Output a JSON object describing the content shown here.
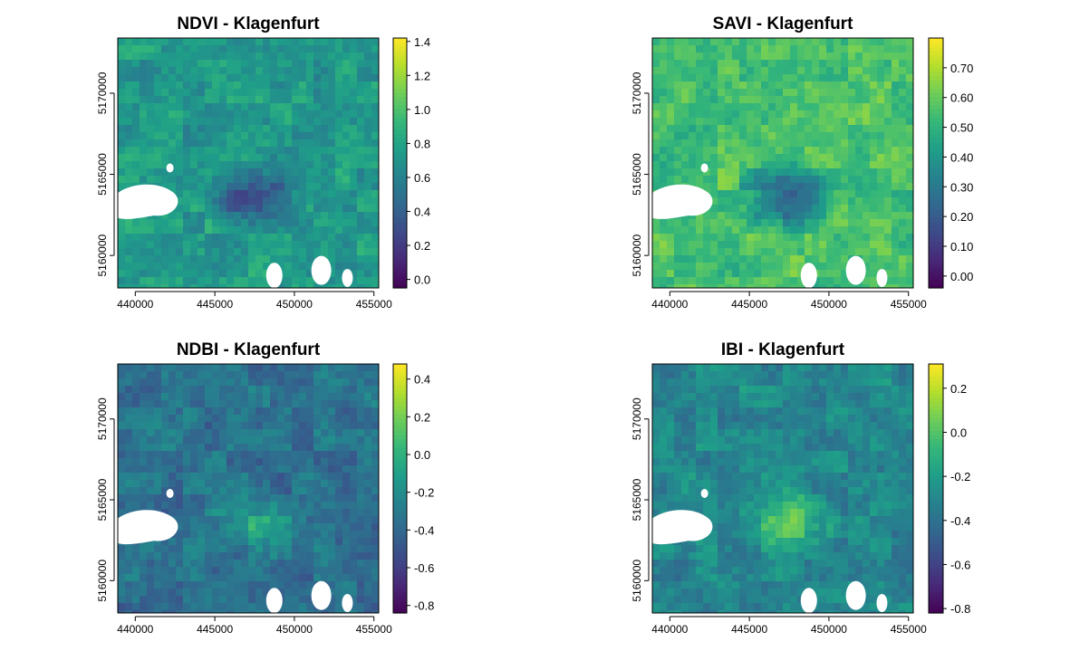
{
  "chart_data": [
    {
      "type": "heatmap",
      "title": "NDVI - Klagenfurt",
      "x_ticks": [
        440000,
        445000,
        450000,
        455000
      ],
      "y_ticks": [
        5160000,
        5165000,
        5170000
      ],
      "xlim": [
        438900,
        455300
      ],
      "ylim": [
        5158000,
        5173400
      ],
      "legend_ticks": [
        0.0,
        0.2,
        0.4,
        0.6,
        0.8,
        1.0,
        1.2,
        1.4
      ],
      "legend_tick_labels": [
        "0.0",
        "0.2",
        "0.4",
        "0.6",
        "0.8",
        "1.0",
        "1.2",
        "1.4"
      ],
      "legend_range": [
        -0.05,
        1.42
      ],
      "legend_placement": "right",
      "colormap": "viridis",
      "typical_value": 0.75,
      "urban_value": 0.25
    },
    {
      "type": "heatmap",
      "title": "SAVI - Klagenfurt",
      "x_ticks": [
        440000,
        445000,
        450000,
        455000
      ],
      "y_ticks": [
        5160000,
        5165000,
        5170000
      ],
      "xlim": [
        438900,
        455300
      ],
      "ylim": [
        5158000,
        5173400
      ],
      "legend_ticks": [
        0.0,
        0.1,
        0.2,
        0.3,
        0.4,
        0.5,
        0.6,
        0.7
      ],
      "legend_tick_labels": [
        "0.00",
        "0.10",
        "0.20",
        "0.30",
        "0.40",
        "0.50",
        "0.60",
        "0.70"
      ],
      "legend_range": [
        -0.04,
        0.8
      ],
      "legend_placement": "right",
      "colormap": "viridis",
      "typical_value": 0.55,
      "urban_value": 0.15
    },
    {
      "type": "heatmap",
      "title": "NDBI - Klagenfurt",
      "x_ticks": [
        440000,
        445000,
        450000,
        455000
      ],
      "y_ticks": [
        5160000,
        5165000,
        5170000
      ],
      "xlim": [
        438900,
        455300
      ],
      "ylim": [
        5158000,
        5173400
      ],
      "legend_ticks": [
        -0.8,
        -0.6,
        -0.4,
        -0.2,
        0.0,
        0.2,
        0.4
      ],
      "legend_tick_labels": [
        "-0.8",
        "-0.6",
        "-0.4",
        "-0.2",
        "0.0",
        "0.2",
        "0.4"
      ],
      "legend_range": [
        -0.84,
        0.48
      ],
      "legend_placement": "right",
      "colormap": "viridis",
      "typical_value": -0.35,
      "urban_value": -0.05
    },
    {
      "type": "heatmap",
      "title": "IBI - Klagenfurt",
      "x_ticks": [
        440000,
        445000,
        450000,
        455000
      ],
      "y_ticks": [
        5160000,
        5165000,
        5170000
      ],
      "xlim": [
        438900,
        455300
      ],
      "ylim": [
        5158000,
        5173400
      ],
      "legend_ticks": [
        -0.8,
        -0.6,
        -0.4,
        -0.2,
        0.0,
        0.2
      ],
      "legend_tick_labels": [
        "-0.8",
        "-0.6",
        "-0.4",
        "-0.2",
        "0.0",
        "0.2"
      ],
      "legend_range": [
        -0.82,
        0.31
      ],
      "legend_placement": "right",
      "colormap": "viridis",
      "typical_value": -0.3,
      "urban_value": 0.05
    }
  ]
}
